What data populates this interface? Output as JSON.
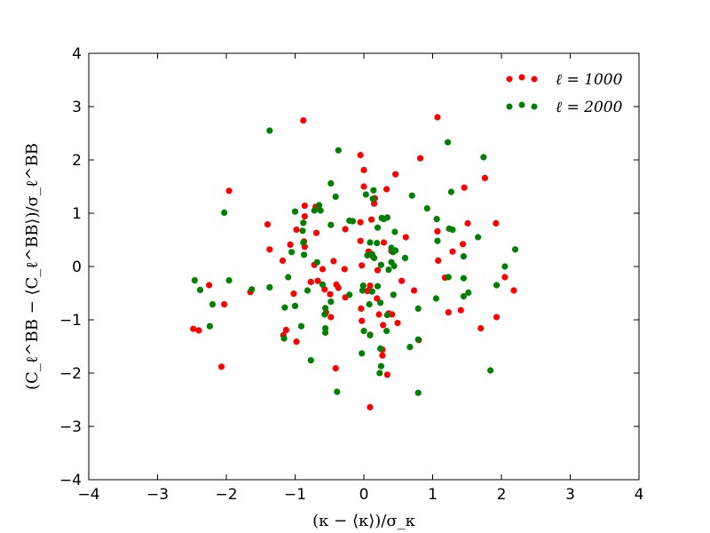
{
  "chart_data": {
    "type": "scatter",
    "xlabel": "(κ − ⟨κ⟩)/σ_κ",
    "ylabel": "(C_ℓ^BB − ⟨C_ℓ^BB⟩)/σ_ℓ^BB",
    "xlim": [
      -4,
      4
    ],
    "ylim": [
      -4,
      4
    ],
    "xticks": [
      -4,
      -3,
      -2,
      -1,
      0,
      1,
      2,
      3,
      4
    ],
    "yticks": [
      -4,
      -3,
      -2,
      -1,
      0,
      1,
      2,
      3,
      4
    ],
    "xtick_labels": [
      "−4",
      "−3",
      "−2",
      "−1",
      "0",
      "1",
      "2",
      "3",
      "4"
    ],
    "ytick_labels": [
      "−4",
      "−3",
      "−2",
      "−1",
      "0",
      "1",
      "2",
      "3",
      "4"
    ],
    "grid": false,
    "legend": "top-right",
    "series": [
      {
        "name": "ℓ = 1000",
        "color": "#ff0000",
        "points": [
          [
            -0.88,
            2.74
          ],
          [
            1.07,
            2.8
          ],
          [
            0.82,
            2.03
          ],
          [
            -0.05,
            2.09
          ],
          [
            0.0,
            1.81
          ],
          [
            0.46,
            1.73
          ],
          [
            1.76,
            1.66
          ],
          [
            0.33,
            1.45
          ],
          [
            1.46,
            1.48
          ],
          [
            -1.96,
            1.42
          ],
          [
            0.0,
            1.5
          ],
          [
            0.15,
            1.18
          ],
          [
            -0.86,
            1.14
          ],
          [
            -0.7,
            1.12
          ],
          [
            0.16,
            1.28
          ],
          [
            -0.86,
            0.94
          ],
          [
            1.51,
            0.81
          ],
          [
            1.92,
            0.81
          ],
          [
            -0.05,
            0.83
          ],
          [
            0.11,
            0.88
          ],
          [
            -1.4,
            0.79
          ],
          [
            -0.98,
            0.69
          ],
          [
            -0.69,
            0.63
          ],
          [
            -0.27,
            0.7
          ],
          [
            0.61,
            0.55
          ],
          [
            1.07,
            0.66
          ],
          [
            -0.05,
            0.48
          ],
          [
            -1.07,
            0.41
          ],
          [
            -0.87,
            0.47
          ],
          [
            0.29,
            0.45
          ],
          [
            1.44,
            0.42
          ],
          [
            -1.37,
            0.32
          ],
          [
            -0.86,
            0.37
          ],
          [
            1.29,
            0.28
          ],
          [
            -1.18,
            0.11
          ],
          [
            0.07,
            0.28
          ],
          [
            -0.72,
            0.03
          ],
          [
            -0.44,
            0.1
          ],
          [
            -0.03,
            0.02
          ],
          [
            0.13,
            0.19
          ],
          [
            1.08,
            0.11
          ],
          [
            0.4,
            0.29
          ],
          [
            -0.28,
            -0.05
          ],
          [
            -0.77,
            -0.29
          ],
          [
            -0.67,
            -0.27
          ],
          [
            -0.57,
            -0.43
          ],
          [
            -0.4,
            -0.34
          ],
          [
            -0.37,
            -0.4
          ],
          [
            0.2,
            -0.07
          ],
          [
            0.09,
            -0.36
          ],
          [
            0.05,
            -0.46
          ],
          [
            0.55,
            -0.27
          ],
          [
            1.18,
            -0.21
          ],
          [
            2.05,
            -0.2
          ],
          [
            -2.25,
            -0.35
          ],
          [
            2.18,
            -0.45
          ],
          [
            -1.65,
            -0.48
          ],
          [
            -1.02,
            -0.51
          ],
          [
            -0.49,
            -0.52
          ],
          [
            0.19,
            -0.6
          ],
          [
            -0.27,
            -0.58
          ],
          [
            0.73,
            -0.45
          ],
          [
            -2.03,
            -0.71
          ],
          [
            -0.04,
            -0.79
          ],
          [
            1.23,
            -0.86
          ],
          [
            1.41,
            -0.82
          ],
          [
            -0.55,
            -0.86
          ],
          [
            -0.48,
            -0.95
          ],
          [
            0.22,
            -0.9
          ],
          [
            0.36,
            -0.88
          ],
          [
            0.41,
            -0.9
          ],
          [
            1.93,
            -0.95
          ],
          [
            -0.03,
            -1.02
          ],
          [
            0.49,
            -1.06
          ],
          [
            0.28,
            -1.1
          ],
          [
            -1.13,
            -1.19
          ],
          [
            -2.48,
            -1.17
          ],
          [
            -2.4,
            -1.2
          ],
          [
            1.7,
            -1.16
          ],
          [
            -1.17,
            -1.29
          ],
          [
            0.09,
            -1.28
          ],
          [
            -0.98,
            -1.41
          ],
          [
            0.8,
            -1.38
          ],
          [
            0.27,
            -1.56
          ],
          [
            0.27,
            -1.67
          ],
          [
            -0.41,
            -1.91
          ],
          [
            -2.07,
            -1.88
          ],
          [
            0.34,
            -2.03
          ],
          [
            0.09,
            -2.64
          ],
          [
            -0.6,
            -0.05
          ]
        ]
      },
      {
        "name": "ℓ = 2000",
        "color": "#008000",
        "points": [
          [
            -1.37,
            2.55
          ],
          [
            1.22,
            2.33
          ],
          [
            -0.37,
            2.18
          ],
          [
            1.74,
            2.05
          ],
          [
            -0.48,
            1.56
          ],
          [
            0.14,
            1.43
          ],
          [
            0.7,
            1.33
          ],
          [
            1.27,
            1.4
          ],
          [
            -0.41,
            1.31
          ],
          [
            0.03,
            1.35
          ],
          [
            -0.65,
            1.15
          ],
          [
            0.13,
            1.27
          ],
          [
            -0.72,
            1.05
          ],
          [
            0.92,
            1.09
          ],
          [
            -2.03,
            1.01
          ],
          [
            -1.0,
            1.03
          ],
          [
            -0.63,
            1.05
          ],
          [
            0.26,
            0.91
          ],
          [
            0.29,
            0.89
          ],
          [
            0.34,
            0.92
          ],
          [
            1.06,
            0.89
          ],
          [
            -0.88,
            0.82
          ],
          [
            -0.21,
            0.86
          ],
          [
            -0.16,
            0.85
          ],
          [
            -0.48,
            0.78
          ],
          [
            0.2,
            0.73
          ],
          [
            0.45,
            0.65
          ],
          [
            1.24,
            0.71
          ],
          [
            1.29,
            0.69
          ],
          [
            -0.89,
            0.67
          ],
          [
            0.09,
            0.45
          ],
          [
            0.19,
            0.44
          ],
          [
            1.07,
            0.48
          ],
          [
            1.66,
            0.55
          ],
          [
            -0.88,
            0.45
          ],
          [
            0.42,
            0.27
          ],
          [
            0.46,
            0.3
          ],
          [
            0.4,
            0.35
          ],
          [
            2.2,
            0.32
          ],
          [
            -1.05,
            0.27
          ],
          [
            -0.87,
            0.22
          ],
          [
            0.05,
            0.21
          ],
          [
            0.12,
            0.23
          ],
          [
            0.15,
            0.16
          ],
          [
            0.6,
            0.16
          ],
          [
            -0.68,
            0.08
          ],
          [
            0.25,
            0.03
          ],
          [
            0.4,
            0.08
          ],
          [
            0.44,
            0.01
          ],
          [
            1.45,
            0.19
          ],
          [
            2.05,
            0.0
          ],
          [
            -1.1,
            -0.2
          ],
          [
            0.36,
            -0.06
          ],
          [
            1.23,
            -0.2
          ],
          [
            1.45,
            -0.22
          ],
          [
            -2.46,
            -0.26
          ],
          [
            -1.96,
            -0.26
          ],
          [
            -0.82,
            -0.45
          ],
          [
            0.2,
            -0.37
          ],
          [
            0.12,
            -0.47
          ],
          [
            1.05,
            -0.6
          ],
          [
            1.52,
            -0.49
          ],
          [
            1.93,
            -0.35
          ],
          [
            -2.38,
            -0.44
          ],
          [
            -1.63,
            -0.43
          ],
          [
            -1.37,
            -0.39
          ],
          [
            -0.6,
            -0.34
          ],
          [
            -0.01,
            -0.36
          ],
          [
            -0.02,
            -0.45
          ],
          [
            -0.21,
            -0.53
          ],
          [
            0.43,
            -0.53
          ],
          [
            1.45,
            -0.56
          ],
          [
            -2.2,
            -0.71
          ],
          [
            -0.48,
            -0.66
          ],
          [
            -1.15,
            -0.77
          ],
          [
            -1.0,
            -0.74
          ],
          [
            -0.56,
            -0.78
          ],
          [
            0.08,
            -0.71
          ],
          [
            0.24,
            -0.68
          ],
          [
            0.79,
            -0.79
          ],
          [
            0.34,
            -0.91
          ],
          [
            -0.57,
            -0.9
          ],
          [
            -2.24,
            -1.12
          ],
          [
            -0.91,
            -1.12
          ],
          [
            -0.56,
            -1.16
          ],
          [
            -0.56,
            -1.24
          ],
          [
            0.0,
            -1.21
          ],
          [
            0.33,
            -1.21
          ],
          [
            0.09,
            -1.29
          ],
          [
            -1.16,
            -1.35
          ],
          [
            0.79,
            -1.37
          ],
          [
            0.67,
            -1.51
          ],
          [
            0.24,
            -1.54
          ],
          [
            -0.03,
            -1.63
          ],
          [
            -0.77,
            -1.76
          ],
          [
            0.25,
            -1.87
          ],
          [
            1.84,
            -1.95
          ],
          [
            0.23,
            -2.0
          ],
          [
            -0.39,
            -2.35
          ],
          [
            0.79,
            -2.37
          ]
        ]
      }
    ]
  }
}
